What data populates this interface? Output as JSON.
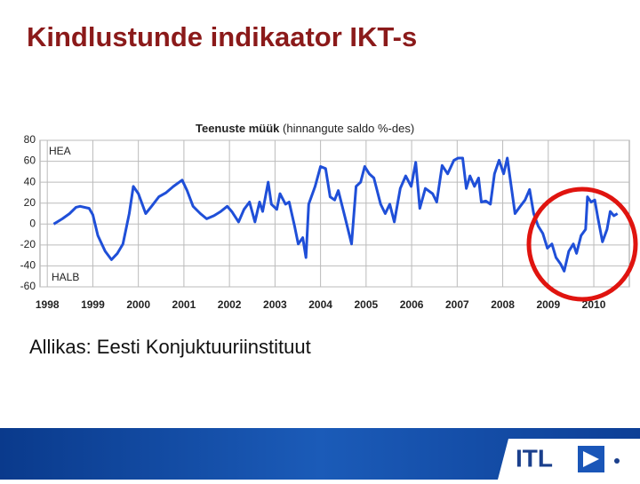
{
  "title": "Kindlustunde indikaator IKT-s",
  "source": "Allikas: Eesti Konjuktuuriinstituut",
  "logo_text": "ITL",
  "chart_data": {
    "type": "line",
    "title": "Teenuste müük",
    "subtitle": "(hinnangute saldo %-des)",
    "annotations": [
      "HEA",
      "HALB"
    ],
    "color": "#1f4fd8",
    "grid": true,
    "xlim": [
      1997.84,
      2010.78
    ],
    "ylim": [
      -60,
      80
    ],
    "xticks": [
      1998,
      1999,
      2000,
      2001,
      2002,
      2003,
      2004,
      2005,
      2006,
      2007,
      2008,
      2009,
      2010
    ],
    "yticks": [
      -60,
      -40,
      -20,
      0,
      20,
      40,
      60,
      80
    ],
    "x": [
      1998.14,
      1998.33,
      1998.49,
      1998.63,
      1998.72,
      1998.92,
      1999.0,
      1999.11,
      1999.27,
      1999.41,
      1999.54,
      1999.66,
      1999.8,
      1999.89,
      2000.0,
      2000.16,
      2000.29,
      2000.45,
      2000.61,
      2000.77,
      2000.96,
      2001.07,
      2001.2,
      2001.36,
      2001.5,
      2001.66,
      2001.81,
      2001.95,
      2002.05,
      2002.2,
      2002.32,
      2002.44,
      2002.56,
      2002.66,
      2002.73,
      2002.85,
      2002.92,
      2003.04,
      2003.11,
      2003.23,
      2003.31,
      2003.43,
      2003.51,
      2003.61,
      2003.68,
      2003.74,
      2003.88,
      2004.0,
      2004.11,
      2004.21,
      2004.31,
      2004.39,
      2004.54,
      2004.68,
      2004.78,
      2004.88,
      2004.97,
      2005.07,
      2005.17,
      2005.32,
      2005.42,
      2005.52,
      2005.62,
      2005.75,
      2005.87,
      2005.99,
      2006.09,
      2006.18,
      2006.3,
      2006.46,
      2006.55,
      2006.67,
      2006.79,
      2006.93,
      2007.02,
      2007.12,
      2007.2,
      2007.28,
      2007.38,
      2007.47,
      2007.53,
      2007.63,
      2007.73,
      2007.82,
      2007.92,
      2008.02,
      2008.1,
      2008.2,
      2008.27,
      2008.37,
      2008.49,
      2008.59,
      2008.68,
      2008.78,
      2008.88,
      2008.98,
      2009.08,
      2009.17,
      2009.27,
      2009.35,
      2009.45,
      2009.55,
      2009.62,
      2009.72,
      2009.82,
      2009.86,
      2009.94,
      2010.02,
      2010.09,
      2010.19,
      2010.29,
      2010.36,
      2010.44,
      2010.52
    ],
    "values": [
      0,
      5,
      10,
      16,
      17,
      15,
      9,
      -11,
      -26,
      -34,
      -28,
      -19,
      10,
      36,
      29,
      10,
      17,
      26,
      30,
      36,
      42,
      32,
      17,
      10,
      5,
      8,
      12,
      17,
      12,
      2,
      14,
      21,
      2,
      21,
      12,
      40,
      19,
      14,
      29,
      19,
      21,
      -2,
      -19,
      -13,
      -32,
      19,
      36,
      55,
      53,
      26,
      23,
      32,
      6,
      -19,
      36,
      40,
      55,
      48,
      44,
      19,
      10,
      19,
      2,
      34,
      46,
      36,
      59,
      15,
      34,
      29,
      21,
      56,
      48,
      61,
      63,
      63,
      34,
      46,
      36,
      44,
      21,
      22,
      19,
      48,
      61,
      48,
      63,
      32,
      10,
      16,
      23,
      33,
      10,
      -2,
      -9,
      -23,
      -19,
      -32,
      -38,
      -45,
      -26,
      -19,
      -28,
      -11,
      -5,
      26,
      21,
      23,
      6,
      -17,
      -5,
      12,
      8,
      10
    ]
  }
}
